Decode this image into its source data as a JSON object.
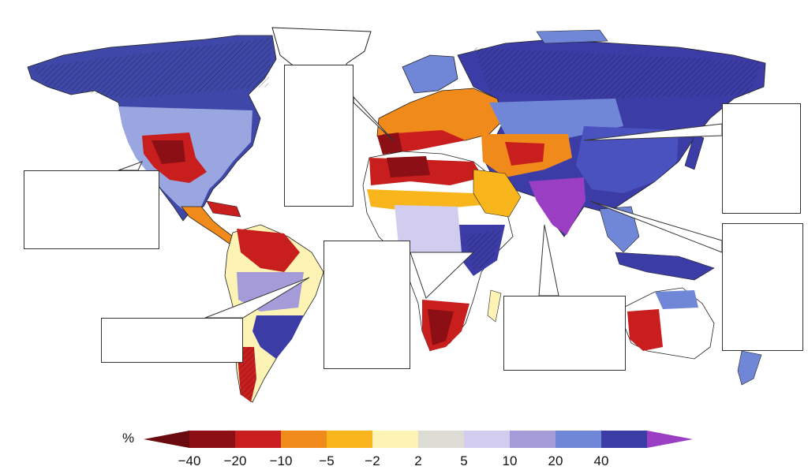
{
  "legend": {
    "unit": "%",
    "tick_labels": [
      "−40",
      "−20",
      "−10",
      "−5",
      "−2",
      "2",
      "5",
      "10",
      "20",
      "40"
    ],
    "colors": [
      "#8b0f14",
      "#c81e1e",
      "#f08a1a",
      "#f8b51c",
      "#fdf3b4",
      "#dcdcd4",
      "#d2cdee",
      "#a49bd8",
      "#6f87d6",
      "#3c3ca6"
    ],
    "low_end_color": "#6b0a0e",
    "high_end_color": "#9a3fc4"
  },
  "map": {
    "ocean_color": "#ffffff",
    "coast_color": "#222222",
    "hatch_color": "#111111",
    "callout_boxes": [
      "north-america",
      "south-america",
      "europe-mediterranean",
      "central-africa",
      "east-africa-south-asia",
      "east-asia",
      "southeast-asia"
    ]
  }
}
